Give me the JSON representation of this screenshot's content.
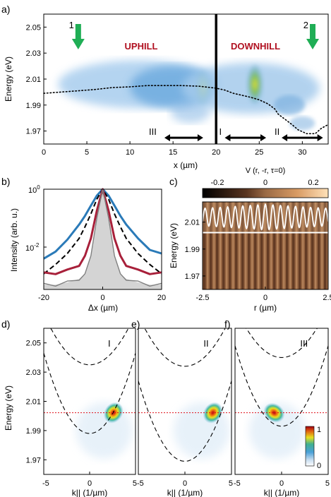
{
  "chart_data": [
    {
      "panel": "a)",
      "type": "heatmap",
      "xlabel": "x (µm)",
      "ylabel": "Energy (eV)",
      "xlim": [
        0,
        33
      ],
      "ylim": [
        1.96,
        2.06
      ],
      "xticks": [
        "0",
        "5",
        "10",
        "15",
        "20",
        "25",
        "30"
      ],
      "yticks": [
        "2.05",
        "2.03",
        "2.01",
        "1.99",
        "1.97"
      ],
      "annotations": {
        "uphill": "UPHILL",
        "downhill": "DOWNHILL",
        "arrow1": "1",
        "arrow2": "2",
        "range1": "I",
        "range2": "II",
        "range3": "III"
      },
      "arrows_x": [
        4,
        31.2
      ],
      "ranges": [
        {
          "label": "I",
          "x": [
            21,
            25.8
          ],
          "y": 1.967
        },
        {
          "label": "II",
          "x": [
            27.6,
            32.4
          ],
          "y": 1.967
        },
        {
          "label": "III",
          "x": [
            14,
            18.5
          ],
          "y": 1.967
        }
      ],
      "divider_x": 20,
      "potential_curve": {
        "x": [
          0,
          2,
          4,
          6,
          8,
          10,
          12,
          14,
          16,
          18,
          20,
          21,
          22,
          23,
          24,
          25,
          26,
          26.8,
          27.2,
          28,
          28.8,
          29.5,
          30.5,
          31.5,
          32.2,
          33
        ],
        "y": [
          1.999,
          2.0,
          2.001,
          2.002,
          2.0035,
          2.004,
          2.005,
          2.005,
          2.005,
          2.0045,
          2.003,
          2.0015,
          1.999,
          1.9975,
          1.996,
          1.994,
          1.991,
          1.987,
          1.983,
          1.979,
          1.975,
          1.971,
          1.968,
          1.968,
          1.972,
          1.975
        ]
      }
    },
    {
      "panel": "b)",
      "type": "line",
      "xlabel": "Δx (µm)",
      "ylabel": "Intensity (arb. u.)",
      "xlim": [
        -20,
        20
      ],
      "yscale": "log",
      "xticks": [
        "-20",
        "0",
        "20"
      ],
      "yticks_base": [
        "10",
        "10"
      ],
      "yticks_exp": [
        "0",
        "-2"
      ],
      "series": [
        {
          "color": "#2a7ab8",
          "x": [
            -20,
            -16,
            -12,
            -8,
            -6,
            -4,
            -2,
            0,
            2,
            4,
            6,
            8,
            12,
            16,
            20
          ],
          "y": [
            0.004,
            0.007,
            0.018,
            0.06,
            0.12,
            0.27,
            0.6,
            1.0,
            0.6,
            0.27,
            0.12,
            0.06,
            0.02,
            0.008,
            0.006
          ]
        },
        {
          "color": "#000000",
          "x": [
            -20,
            -16,
            -12,
            -8,
            -6,
            -4,
            -2,
            0,
            2,
            4,
            6,
            8,
            12,
            16,
            20
          ],
          "y": [
            0.0012,
            0.0025,
            0.006,
            0.02,
            0.05,
            0.14,
            0.45,
            1.0,
            0.45,
            0.14,
            0.05,
            0.02,
            0.006,
            0.0025,
            0.0012
          ]
        },
        {
          "color": "#a8203a",
          "x": [
            -20,
            -16,
            -12,
            -8,
            -6,
            -4,
            -2,
            0,
            2,
            4,
            6,
            8,
            12,
            16,
            20
          ],
          "y": [
            0.0012,
            0.0013,
            0.0015,
            0.0025,
            0.005,
            0.02,
            0.18,
            1.0,
            0.18,
            0.02,
            0.005,
            0.0025,
            0.0015,
            0.0013,
            0.0012
          ]
        },
        {
          "color": "#808080",
          "x": [
            -20,
            -16,
            -12,
            -8,
            -6,
            -4,
            -2,
            0,
            2,
            4,
            6,
            8,
            12,
            16,
            20
          ],
          "y": [
            0.0005,
            0.0005,
            0.0006,
            0.0008,
            0.0012,
            0.005,
            0.1,
            1.0,
            0.1,
            0.005,
            0.0012,
            0.0008,
            0.0006,
            0.0005,
            0.0005
          ]
        }
      ]
    },
    {
      "panel": "c)",
      "type": "heatmap",
      "title": "V (r, -r, τ=0)",
      "xlabel": "r (µm)",
      "ylabel": "Energy (eV)",
      "xlim": [
        -2.5,
        2.5
      ],
      "ylim": [
        1.96,
        2.025
      ],
      "xticks": [
        "-2.5",
        "0",
        "2.5"
      ],
      "yticks": [
        "2.01",
        "1.99",
        "1.97"
      ],
      "colorbar_ticks": [
        "-0.2",
        "0",
        "0.2"
      ],
      "colorbar_range": [
        -0.3,
        0.3
      ],
      "fringe_line_energy": 2.0022
    },
    {
      "panel": "d)",
      "type": "heatmap",
      "label": "I",
      "xlabel": "k|| (1/µm)",
      "ylabel": "Energy (eV)",
      "xlim": [
        -5,
        5
      ],
      "ylim": [
        1.96,
        2.06
      ],
      "xticks": [
        "-5",
        "0",
        "5"
      ],
      "yticks": [
        "2.05",
        "2.03",
        "2.01",
        "1.99",
        "1.97"
      ],
      "red_line_energy": 2.0022,
      "lower_dispersion_min": 1.988,
      "upper_dispersion_min": 2.035,
      "peak": {
        "k": 2.6,
        "E": 2.0022
      }
    },
    {
      "panel": "e)",
      "type": "heatmap",
      "label": "II",
      "xlabel": "k|| (1/µm)",
      "xlim": [
        -5,
        5
      ],
      "ylim": [
        1.96,
        2.06
      ],
      "xticks": [
        "-5",
        "0",
        "5"
      ],
      "red_line_energy": 2.0022,
      "lower_dispersion_min": 1.969,
      "upper_dispersion_min": 2.034,
      "peak": {
        "k": 3.0,
        "E": 2.0022
      }
    },
    {
      "panel": "f)",
      "type": "heatmap",
      "label": "III",
      "xlabel": "k|| (1/µm)",
      "xlim": [
        -5,
        5
      ],
      "ylim": [
        1.96,
        2.06
      ],
      "xticks": [
        "-5",
        "0",
        "5"
      ],
      "red_line_energy": 2.0022,
      "lower_dispersion_min": 1.993,
      "upper_dispersion_min": 2.04,
      "peak": {
        "k": -0.8,
        "E": 2.0022
      },
      "colorbar_ticks": [
        "1",
        "0"
      ]
    }
  ]
}
